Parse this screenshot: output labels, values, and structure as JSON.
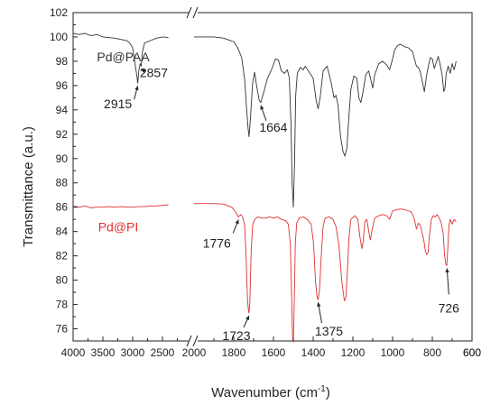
{
  "chart_data": {
    "type": "line",
    "title": "",
    "xlabel": "Wavenumber (cm",
    "xlabel_sup": "-1",
    "xlabel_end": ")",
    "ylabel": "Transmittance (a.u.)",
    "ylim": [
      75,
      102
    ],
    "y_ticks": [
      76,
      78,
      80,
      82,
      84,
      86,
      88,
      90,
      92,
      94,
      96,
      98,
      100,
      102
    ],
    "x_axis_broken": true,
    "x_reversed": true,
    "x_segments": [
      {
        "from": 4000,
        "to": 2000,
        "ticks": [
          4000,
          3500,
          3000,
          2500
        ]
      },
      {
        "from": 2000,
        "to": 600,
        "ticks": [
          2000,
          1800,
          1600,
          1400,
          1200,
          1000,
          800,
          600
        ]
      }
    ],
    "series": [
      {
        "name": "Pd@PAA",
        "color": "#333333",
        "segments": [
          [
            [
              4000,
              100.3
            ],
            [
              3900,
              100.2
            ],
            [
              3800,
              100.3
            ],
            [
              3700,
              100.1
            ],
            [
              3600,
              100.2
            ],
            [
              3500,
              100.0
            ],
            [
              3400,
              99.95
            ],
            [
              3300,
              99.9
            ],
            [
              3200,
              99.8
            ],
            [
              3100,
              99.7
            ],
            [
              3050,
              99.5
            ],
            [
              3000,
              99.1
            ],
            [
              2960,
              97.8
            ],
            [
              2930,
              96.8
            ],
            [
              2915,
              96.2
            ],
            [
              2895,
              97.3
            ],
            [
              2875,
              97.8
            ],
            [
              2857,
              97.6
            ],
            [
              2835,
              98.8
            ],
            [
              2800,
              99.5
            ],
            [
              2700,
              99.7
            ],
            [
              2600,
              99.9
            ],
            [
              2500,
              100.0
            ],
            [
              2400,
              99.95
            ]
          ],
          [
            [
              2000,
              100.0
            ],
            [
              1900,
              100.0
            ],
            [
              1850,
              99.9
            ],
            [
              1800,
              99.6
            ],
            [
              1780,
              99.1
            ],
            [
              1760,
              98.3
            ],
            [
              1745,
              96.5
            ],
            [
              1735,
              94.0
            ],
            [
              1728,
              92.5
            ],
            [
              1723,
              91.8
            ],
            [
              1716,
              93.3
            ],
            [
              1705,
              96.2
            ],
            [
              1695,
              97.1
            ],
            [
              1685,
              96.0
            ],
            [
              1672,
              94.8
            ],
            [
              1664,
              94.6
            ],
            [
              1650,
              95.4
            ],
            [
              1630,
              96.6
            ],
            [
              1610,
              97.3
            ],
            [
              1590,
              98.2
            ],
            [
              1575,
              98.1
            ],
            [
              1560,
              97.2
            ],
            [
              1545,
              97.0
            ],
            [
              1530,
              97.3
            ],
            [
              1520,
              96.6
            ],
            [
              1512,
              93.0
            ],
            [
              1506,
              88.0
            ],
            [
              1500,
              86.0
            ],
            [
              1494,
              89.5
            ],
            [
              1488,
              95.2
            ],
            [
              1480,
              97.0
            ],
            [
              1465,
              97.5
            ],
            [
              1450,
              97.3
            ],
            [
              1440,
              97.6
            ],
            [
              1420,
              97.1
            ],
            [
              1400,
              96.6
            ],
            [
              1385,
              94.8
            ],
            [
              1375,
              94.1
            ],
            [
              1365,
              95.0
            ],
            [
              1350,
              97.2
            ],
            [
              1330,
              97.6
            ],
            [
              1310,
              96.3
            ],
            [
              1295,
              95.0
            ],
            [
              1285,
              95.2
            ],
            [
              1275,
              94.4
            ],
            [
              1262,
              91.8
            ],
            [
              1250,
              90.6
            ],
            [
              1240,
              90.2
            ],
            [
              1230,
              90.9
            ],
            [
              1220,
              93.5
            ],
            [
              1210,
              95.7
            ],
            [
              1195,
              96.8
            ],
            [
              1180,
              96.6
            ],
            [
              1170,
              95.0
            ],
            [
              1160,
              94.6
            ],
            [
              1150,
              95.4
            ],
            [
              1135,
              96.9
            ],
            [
              1120,
              97.2
            ],
            [
              1110,
              96.5
            ],
            [
              1100,
              95.8
            ],
            [
              1090,
              96.9
            ],
            [
              1070,
              97.8
            ],
            [
              1050,
              98.0
            ],
            [
              1030,
              97.7
            ],
            [
              1015,
              97.3
            ],
            [
              1000,
              98.2
            ],
            [
              990,
              98.9
            ],
            [
              975,
              99.3
            ],
            [
              960,
              99.4
            ],
            [
              940,
              99.2
            ],
            [
              920,
              99.1
            ],
            [
              900,
              98.8
            ],
            [
              890,
              98.2
            ],
            [
              880,
              97.6
            ],
            [
              870,
              97.5
            ],
            [
              860,
              97.1
            ],
            [
              850,
              96.3
            ],
            [
              840,
              95.5
            ],
            [
              830,
              96.7
            ],
            [
              820,
              97.6
            ],
            [
              810,
              98.3
            ],
            [
              800,
              98.2
            ],
            [
              790,
              97.4
            ],
            [
              780,
              97.9
            ],
            [
              770,
              98.4
            ],
            [
              760,
              97.7
            ],
            [
              750,
              96.8
            ],
            [
              742,
              95.5
            ],
            [
              736,
              95.8
            ],
            [
              730,
              97.0
            ],
            [
              720,
              97.6
            ],
            [
              710,
              97.0
            ],
            [
              700,
              97.8
            ],
            [
              690,
              97.3
            ],
            [
              680,
              98.0
            ]
          ]
        ]
      },
      {
        "name": "Pd@PI",
        "color": "#e03030",
        "segments": [
          [
            [
              4000,
              86.1
            ],
            [
              3900,
              86.0
            ],
            [
              3800,
              86.1
            ],
            [
              3700,
              85.95
            ],
            [
              3600,
              86.0
            ],
            [
              3500,
              86.0
            ],
            [
              3400,
              86.05
            ],
            [
              3300,
              86.0
            ],
            [
              3200,
              86.05
            ],
            [
              3100,
              86.0
            ],
            [
              3000,
              86.0
            ],
            [
              2900,
              86.05
            ],
            [
              2800,
              86.05
            ],
            [
              2700,
              86.1
            ],
            [
              2600,
              86.1
            ],
            [
              2500,
              86.15
            ],
            [
              2400,
              86.2
            ]
          ],
          [
            [
              2000,
              86.3
            ],
            [
              1900,
              86.3
            ],
            [
              1850,
              86.25
            ],
            [
              1810,
              86.0
            ],
            [
              1790,
              85.6
            ],
            [
              1776,
              85.2
            ],
            [
              1765,
              85.4
            ],
            [
              1755,
              85.2
            ],
            [
              1745,
              84.5
            ],
            [
              1738,
              82.0
            ],
            [
              1731,
              78.5
            ],
            [
              1726,
              77.5
            ],
            [
              1723,
              77.3
            ],
            [
              1719,
              78.2
            ],
            [
              1712,
              82.5
            ],
            [
              1705,
              84.5
            ],
            [
              1695,
              85.0
            ],
            [
              1680,
              85.2
            ],
            [
              1660,
              85.1
            ],
            [
              1640,
              85.1
            ],
            [
              1620,
              85.2
            ],
            [
              1600,
              85.1
            ],
            [
              1580,
              85.2
            ],
            [
              1560,
              85.0
            ],
            [
              1540,
              84.9
            ],
            [
              1525,
              84.6
            ],
            [
              1515,
              83.0
            ],
            [
              1509,
              79.0
            ],
            [
              1504,
              75.5
            ],
            [
              1500,
              74.9
            ],
            [
              1496,
              77.5
            ],
            [
              1490,
              83.0
            ],
            [
              1483,
              84.7
            ],
            [
              1470,
              85.1
            ],
            [
              1450,
              85.2
            ],
            [
              1430,
              85.0
            ],
            [
              1410,
              84.6
            ],
            [
              1398,
              83.0
            ],
            [
              1388,
              79.8
            ],
            [
              1380,
              78.6
            ],
            [
              1375,
              78.4
            ],
            [
              1368,
              79.2
            ],
            [
              1360,
              81.8
            ],
            [
              1350,
              84.4
            ],
            [
              1340,
              85.1
            ],
            [
              1320,
              85.2
            ],
            [
              1300,
              85.0
            ],
            [
              1285,
              84.4
            ],
            [
              1270,
              82.8
            ],
            [
              1255,
              79.8
            ],
            [
              1243,
              78.3
            ],
            [
              1235,
              78.6
            ],
            [
              1228,
              80.6
            ],
            [
              1220,
              83.5
            ],
            [
              1210,
              85.0
            ],
            [
              1190,
              85.3
            ],
            [
              1175,
              85.0
            ],
            [
              1165,
              83.6
            ],
            [
              1155,
              82.6
            ],
            [
              1148,
              83.2
            ],
            [
              1140,
              84.8
            ],
            [
              1130,
              85.0
            ],
            [
              1120,
              84.0
            ],
            [
              1112,
              83.3
            ],
            [
              1105,
              84.0
            ],
            [
              1090,
              85.1
            ],
            [
              1070,
              85.3
            ],
            [
              1050,
              85.4
            ],
            [
              1030,
              85.3
            ],
            [
              1015,
              85.0
            ],
            [
              1000,
              85.7
            ],
            [
              980,
              85.8
            ],
            [
              960,
              85.85
            ],
            [
              940,
              85.8
            ],
            [
              920,
              85.7
            ],
            [
              905,
              85.6
            ],
            [
              890,
              85.0
            ],
            [
              880,
              84.2
            ],
            [
              870,
              84.7
            ],
            [
              860,
              84.5
            ],
            [
              850,
              83.8
            ],
            [
              842,
              83.2
            ],
            [
              835,
              82.4
            ],
            [
              828,
              82.1
            ],
            [
              821,
              82.3
            ],
            [
              815,
              83.6
            ],
            [
              805,
              85.0
            ],
            [
              795,
              85.3
            ],
            [
              785,
              85.2
            ],
            [
              775,
              85.4
            ],
            [
              765,
              85.1
            ],
            [
              755,
              84.7
            ],
            [
              745,
              83.8
            ],
            [
              738,
              82.0
            ],
            [
              732,
              81.3
            ],
            [
              727,
              81.2
            ],
            [
              722,
              82.6
            ],
            [
              716,
              84.5
            ],
            [
              710,
              85.0
            ],
            [
              700,
              84.6
            ],
            [
              690,
              85.0
            ],
            [
              680,
              84.8
            ]
          ]
        ]
      }
    ],
    "series_labels": [
      {
        "text": "Pd@PAA",
        "color": "#333333",
        "x": 3600,
        "y": 98.0
      },
      {
        "text": "Pd@PI",
        "color": "#e03030",
        "x": 3580,
        "y": 84.0
      }
    ],
    "annotations": [
      {
        "text": "2915",
        "x": 2915,
        "y": 96.2
      },
      {
        "text": "2857",
        "x": 2857,
        "y": 97.6
      },
      {
        "text": "1664",
        "x": 1664,
        "y": 94.6
      },
      {
        "text": "1776",
        "x": 1776,
        "y": 85.2
      },
      {
        "text": "1723",
        "x": 1723,
        "y": 77.3
      },
      {
        "text": "1375",
        "x": 1375,
        "y": 78.4
      },
      {
        "text": "726",
        "x": 726,
        "y": 81.2
      }
    ]
  }
}
